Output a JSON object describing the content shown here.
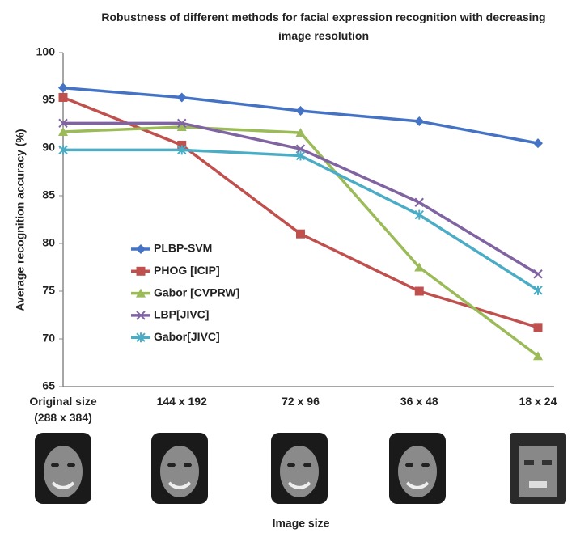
{
  "chart_data": {
    "type": "line",
    "title": "Robustness of different methods for facial expression recognition with decreasing image resolution",
    "y_label": "Average recognition accuracy (%)",
    "x_label": "Image size",
    "categories": [
      "Original size\n(288 x 384)",
      "144 x 192",
      "72 x 96",
      "36 x 48",
      "18 x 24"
    ],
    "ylim": [
      65,
      100
    ],
    "yticks": [
      65,
      70,
      75,
      80,
      85,
      90,
      95,
      100
    ],
    "grid": false,
    "series": [
      {
        "name": "PLBP-SVM",
        "color": "#4472c4",
        "marker": "diamond",
        "values": [
          96.3,
          95.3,
          93.9,
          92.8,
          90.5
        ]
      },
      {
        "name": "PHOG [ICIP]",
        "color": "#c0504d",
        "marker": "square",
        "values": [
          95.3,
          90.3,
          81.0,
          75.0,
          71.2
        ]
      },
      {
        "name": "Gabor [CVPRW]",
        "color": "#9bbb59",
        "marker": "triangle",
        "values": [
          91.7,
          92.2,
          91.6,
          77.5,
          68.2
        ]
      },
      {
        "name": "LBP[JIVC]",
        "color": "#8064a2",
        "marker": "x",
        "values": [
          92.6,
          92.6,
          89.9,
          84.3,
          76.8
        ]
      },
      {
        "name": "Gabor[JIVC]",
        "color": "#4bacc6",
        "marker": "star",
        "values": [
          89.8,
          89.8,
          89.2,
          83.0,
          75.1
        ]
      }
    ]
  }
}
